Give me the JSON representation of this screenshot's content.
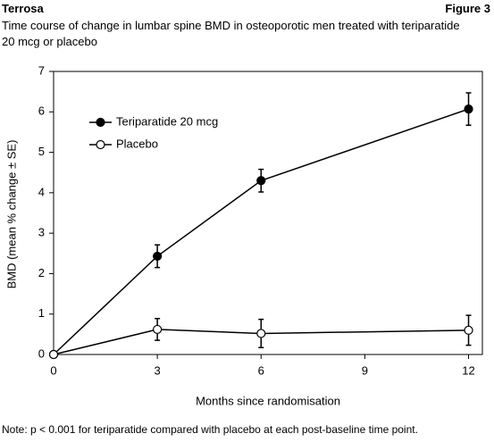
{
  "header": {
    "source": "Terrosa",
    "figure_label": "Figure 3",
    "subtitle": "Time course of change in lumbar spine BMD in osteoporotic men treated with teriparatide 20 mcg or placebo"
  },
  "note": "Note: p < 0.001 for teriparatide compared with placebo at each post-baseline time point.",
  "chart_data": {
    "type": "line",
    "x_label": "Months since randomisation",
    "y_label": "BMD (mean % change ± SE)",
    "x": [
      0,
      3,
      6,
      12
    ],
    "series": [
      {
        "name": "Teriparatide 20 mcg",
        "color": "#000000",
        "marker": "filled",
        "values": [
          0,
          2.43,
          4.3,
          6.07
        ],
        "errors": [
          null,
          0.28,
          0.28,
          0.4
        ]
      },
      {
        "name": "Placebo",
        "color": "#000000",
        "marker": "open",
        "values": [
          0,
          0.62,
          0.52,
          0.6
        ],
        "errors": [
          null,
          0.27,
          0.35,
          0.37
        ]
      }
    ],
    "xlim": [
      0,
      12.4
    ],
    "xticks": [
      0,
      3,
      6,
      9,
      12
    ],
    "ylim": [
      0,
      7
    ],
    "yticks": [
      0,
      1,
      2,
      3,
      4,
      5,
      6,
      7
    ],
    "legend": "upper left"
  }
}
